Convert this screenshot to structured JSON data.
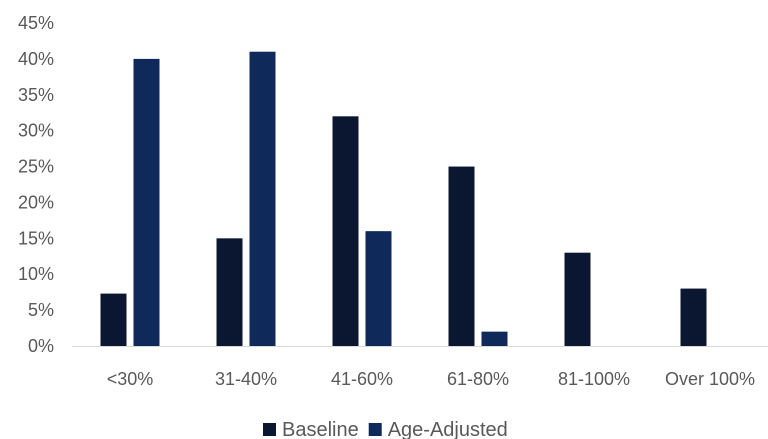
{
  "chart_data": {
    "type": "bar",
    "categories": [
      "<30%",
      "31-40%",
      "41-60%",
      "61-80%",
      "81-100%",
      "Over 100%"
    ],
    "series": [
      {
        "name": "Baseline",
        "color": "#0b1731",
        "values": [
          7.3,
          15,
          32,
          25,
          13,
          8
        ]
      },
      {
        "name": "Age-Adjusted",
        "color": "#0f2a5a",
        "values": [
          40,
          41,
          16,
          2,
          0,
          0
        ]
      }
    ],
    "y_ticks": [
      "0%",
      "5%",
      "10%",
      "15%",
      "20%",
      "25%",
      "30%",
      "35%",
      "40%",
      "45%"
    ],
    "ylim": [
      0,
      45
    ],
    "grid": false,
    "legend_position": "bottom",
    "title": "",
    "xlabel": "",
    "ylabel": ""
  }
}
